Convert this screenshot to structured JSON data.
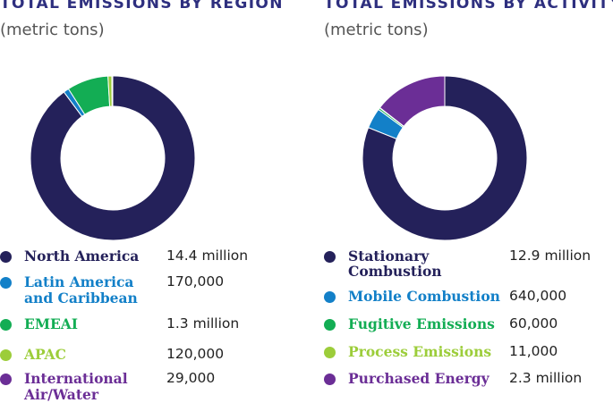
{
  "colors": {
    "title": "#2e2f7f",
    "navy": "#24215a",
    "blue": "#1380c8",
    "green": "#13ad54",
    "lime": "#9ccd3a",
    "purple": "#6b2e96"
  },
  "chart_data": [
    {
      "type": "pie",
      "variant": "donut",
      "title": "TOTAL EMISSIONS BY REGION",
      "subtitle": "(metric tons)",
      "series": [
        {
          "name": "North America",
          "label_lines": [
            "North America"
          ],
          "display_value": "14.4 million",
          "value": 14400000,
          "color": "#24215a"
        },
        {
          "name": "Latin America and Caribbean",
          "label_lines": [
            "Latin America",
            "and Caribbean"
          ],
          "display_value": "170,000",
          "value": 170000,
          "color": "#1380c8"
        },
        {
          "name": "EMEAI",
          "label_lines": [
            "EMEAI"
          ],
          "display_value": "1.3 million",
          "value": 1300000,
          "color": "#13ad54"
        },
        {
          "name": "APAC",
          "label_lines": [
            "APAC"
          ],
          "display_value": "120,000",
          "value": 120000,
          "color": "#9ccd3a"
        },
        {
          "name": "International Air/Water",
          "label_lines": [
            "International",
            "Air/Water"
          ],
          "display_value": "29,000",
          "value": 29000,
          "color": "#6b2e96"
        }
      ]
    },
    {
      "type": "pie",
      "variant": "donut",
      "title": "TOTAL EMISSIONS BY ACTIVITY",
      "subtitle": "(metric tons)",
      "series": [
        {
          "name": "Stationary Combustion",
          "label_lines": [
            "Stationary",
            "Combustion"
          ],
          "display_value": "12.9 million",
          "value": 12900000,
          "color": "#24215a"
        },
        {
          "name": "Mobile Combustion",
          "label_lines": [
            "Mobile Combustion"
          ],
          "display_value": "640,000",
          "value": 640000,
          "color": "#1380c8"
        },
        {
          "name": "Fugitive Emissions",
          "label_lines": [
            "Fugitive Emissions"
          ],
          "display_value": "60,000",
          "value": 60000,
          "color": "#13ad54"
        },
        {
          "name": "Process Emissions",
          "label_lines": [
            "Process Emissions"
          ],
          "display_value": "11,000",
          "value": 11000,
          "color": "#9ccd3a"
        },
        {
          "name": "Purchased Energy",
          "label_lines": [
            "Purchased Energy"
          ],
          "display_value": "2.3 million",
          "value": 2300000,
          "color": "#6b2e96"
        }
      ]
    }
  ]
}
